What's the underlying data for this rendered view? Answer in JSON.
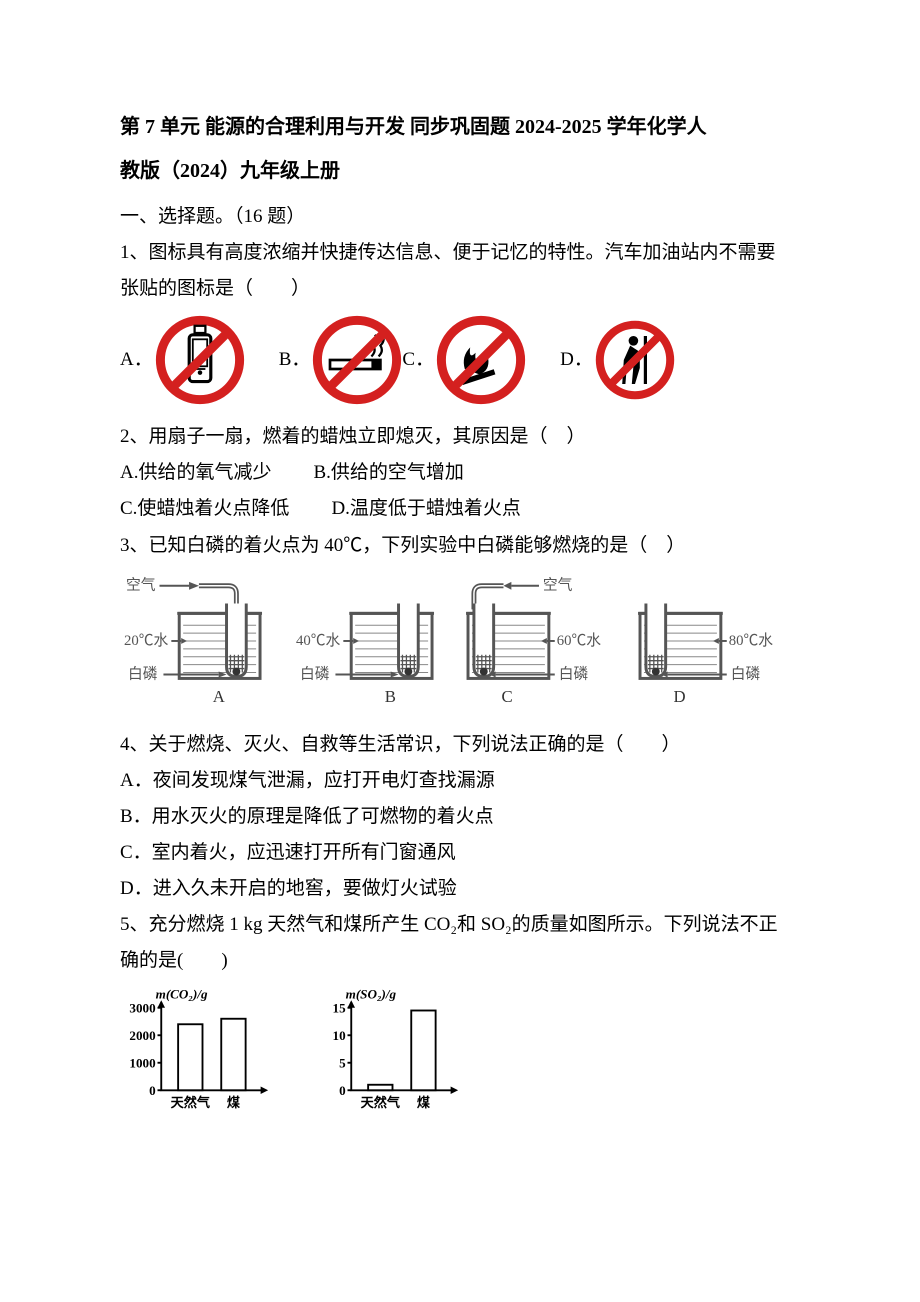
{
  "title_line1": "第 7 单元 能源的合理利用与开发 同步巩固题 2024-2025 学年化学人",
  "title_line2": "教版（2024）九年级上册",
  "section1": "一、选择题。（16 题）",
  "q1": {
    "text_l1": "1、图标具有高度浓缩并快捷传达信息、便于记忆的特性。汽车加油站内不需要",
    "text_l2": "张贴的图标是（　　）",
    "A": "A．",
    "B": "B．",
    "C": "C．",
    "D": "D．",
    "sign_colors": {
      "red": "#d4201f",
      "black": "#000000",
      "white": "#ffffff"
    },
    "icons": {
      "a": "no-phone",
      "b": "no-smoking",
      "c": "no-fire",
      "d": "no-leaning"
    }
  },
  "q2": {
    "text": "2、用扇子一扇，燃着的蜡烛立即熄灭，其原因是（　）",
    "A": "A.供给的氧气减少",
    "B": "B.供给的空气增加",
    "C": "C.使蜡烛着火点降低",
    "D": "D.温度低于蜡烛着火点"
  },
  "q3": {
    "text": "3、已知白磷的着火点为 40℃，下列实验中白磷能够燃烧的是（　）",
    "labels": {
      "air": "空气",
      "water20": "20℃水",
      "water40": "40℃水",
      "water60": "60℃水",
      "water80": "80℃水",
      "wp": "白磷",
      "A": "A",
      "B": "B",
      "C": "C",
      "D": "D"
    },
    "line_color": "#6a6a6a"
  },
  "q4": {
    "text": "4、关于燃烧、灭火、自救等生活常识，下列说法正确的是（　　）",
    "A": "A．夜间发现煤气泄漏，应打开电灯查找漏源",
    "B": "B．用水灭火的原理是降低了可燃物的着火点",
    "C": "C．室内着火，应迅速打开所有门窗通风",
    "D": "D．进入久未开启的地窖，要做灯火试验"
  },
  "q5": {
    "text_l1": "5、充分燃烧 1 kg 天然气和煤所产生 CO₂和 SO₂的质量如图所示。下列说法不正",
    "text_l2": "确的是(　　)",
    "chart1": {
      "ylabel": "m(CO₂)/g",
      "ymax": 3000,
      "ticks": [
        0,
        1000,
        2000,
        3000
      ],
      "categories": [
        "天然气",
        "煤"
      ],
      "values": [
        2400,
        2600
      ],
      "bar_color": "#ffffff",
      "border_color": "#000000",
      "font_size": 14
    },
    "chart2": {
      "ylabel": "m(SO₂)/g",
      "ymax": 15,
      "ticks": [
        0,
        5,
        10,
        15
      ],
      "categories": [
        "天然气",
        "煤"
      ],
      "values": [
        1,
        14.5
      ],
      "bar_color": "#ffffff",
      "border_color": "#000000",
      "font_size": 14
    }
  }
}
